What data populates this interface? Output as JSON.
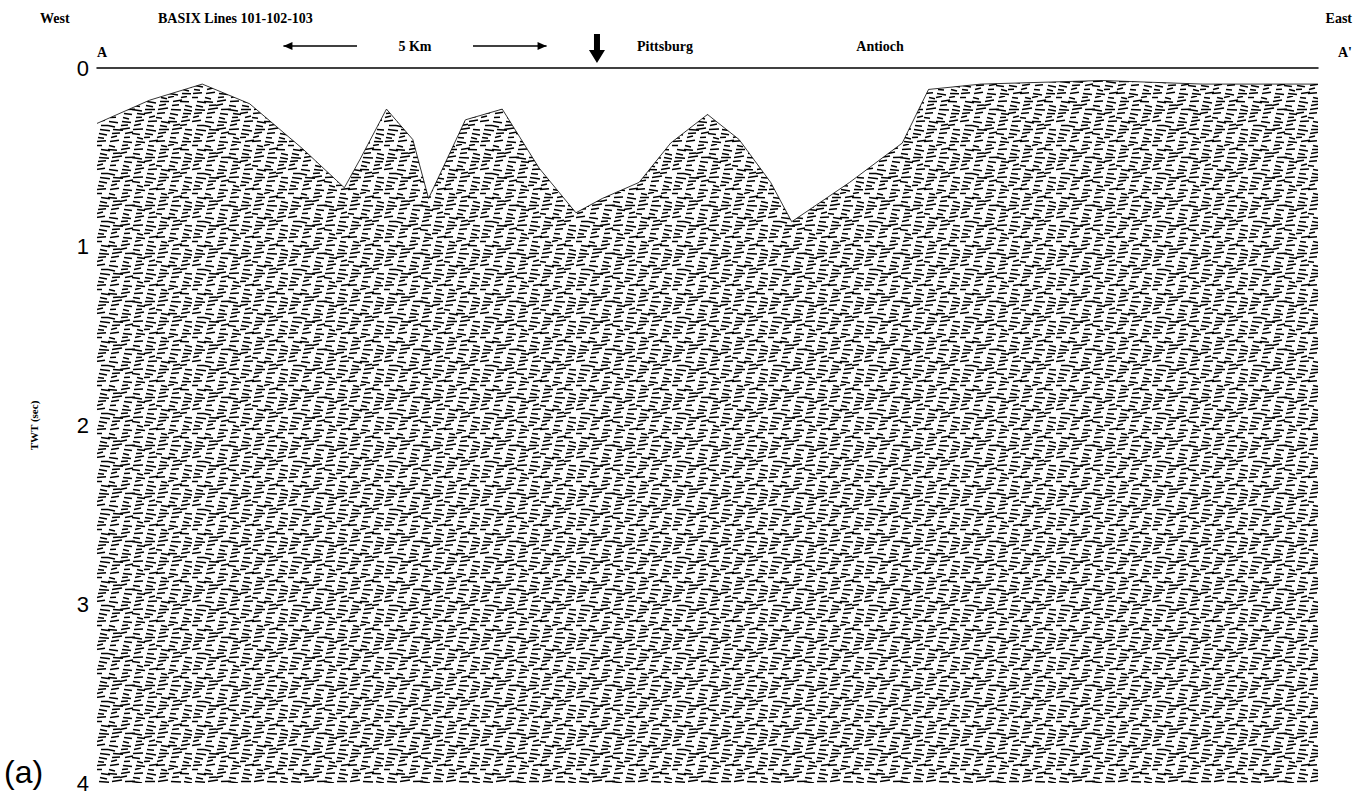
{
  "chart_data": {
    "type": "area",
    "title": "BASIX Lines 101-102-103",
    "header_left": "West",
    "header_right": "East",
    "section_start": "A",
    "section_end": "A'",
    "panel_label": "(a)",
    "ylabel": "TWT (sec)",
    "annotations": [
      {
        "text": "Pittsburg"
      },
      {
        "text": "Antioch"
      }
    ],
    "scale_bar": {
      "label": "5 Km",
      "length": 5
    },
    "marker_x": 9.5,
    "x": [
      0,
      1.0,
      2.0,
      2.9,
      3.9,
      4.7,
      5.0,
      5.5,
      6.0,
      6.3,
      7.0,
      7.7,
      8.4,
      9.1,
      9.6,
      10.3,
      10.9,
      11.6,
      12.2,
      12.8,
      13.2,
      13.6,
      14.3,
      15.3,
      15.8,
      16.8,
      19.1,
      21.0,
      23.2
    ],
    "values": [
      0.31,
      0.18,
      0.09,
      0.2,
      0.45,
      0.67,
      0.51,
      0.23,
      0.4,
      0.73,
      0.29,
      0.23,
      0.56,
      0.81,
      0.73,
      0.64,
      0.42,
      0.26,
      0.4,
      0.64,
      0.86,
      0.78,
      0.64,
      0.42,
      0.12,
      0.09,
      0.07,
      0.09,
      0.09
    ],
    "xlim": [
      0,
      23.2
    ],
    "ylim": [
      0,
      4
    ],
    "yticks": [
      0,
      1,
      2,
      3,
      4
    ],
    "grid": false,
    "tick_labels": "y",
    "color": "#000000"
  }
}
